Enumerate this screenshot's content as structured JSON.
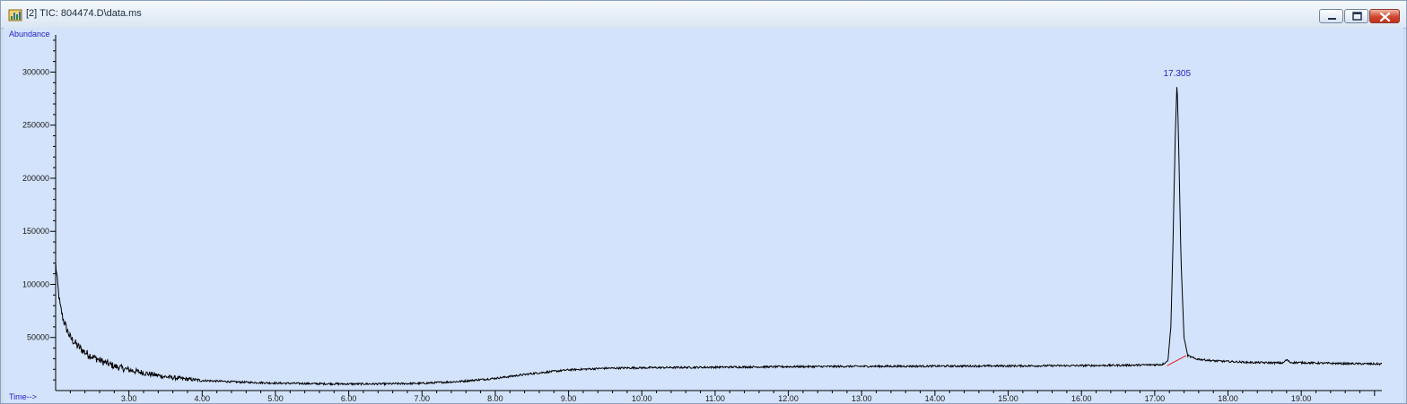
{
  "window": {
    "title": "[2] TIC: 804474.D\\data.ms",
    "icons": {
      "app": "chromatogram-app-icon",
      "minimize": "minimize-icon",
      "maximize": "maximize-icon",
      "close": "close-icon"
    }
  },
  "colors": {
    "plot_bg": "#d3e3fb",
    "trace": "#000000",
    "baseline": "#e01b1b",
    "axis_text": "#2424c8"
  },
  "chart_data": {
    "type": "line",
    "xlabel": "Time-->",
    "ylabel": "Abundance",
    "xlim": [
      2.0,
      20.1
    ],
    "ylim": [
      0,
      335000
    ],
    "x_ticks": [
      "3.00",
      "4.00",
      "5.00",
      "6.00",
      "7.00",
      "8.00",
      "9.00",
      "10.00",
      "11.00",
      "12.00",
      "13.00",
      "14.00",
      "15.00",
      "16.00",
      "17.00",
      "18.00",
      "19.00"
    ],
    "y_ticks": [
      "50000",
      "100000",
      "150000",
      "200000",
      "250000",
      "300000"
    ],
    "grid": false,
    "series": [
      {
        "points": [
          [
            2.0,
            120000
          ],
          [
            2.03,
            98000
          ],
          [
            2.06,
            80000
          ],
          [
            2.1,
            68000
          ],
          [
            2.15,
            58000
          ],
          [
            2.2,
            50000
          ],
          [
            2.3,
            42000
          ],
          [
            2.4,
            36000
          ],
          [
            2.5,
            32000
          ],
          [
            2.65,
            27000
          ],
          [
            2.8,
            23000
          ],
          [
            3.0,
            19500
          ],
          [
            3.25,
            16000
          ],
          [
            3.5,
            13000
          ],
          [
            3.75,
            11000
          ],
          [
            4.0,
            9500
          ],
          [
            4.5,
            8000
          ],
          [
            5.0,
            7000
          ],
          [
            5.5,
            6500
          ],
          [
            6.0,
            6200
          ],
          [
            6.5,
            6300
          ],
          [
            7.0,
            6800
          ],
          [
            7.5,
            8500
          ],
          [
            8.0,
            11500
          ],
          [
            8.5,
            16000
          ],
          [
            9.0,
            19500
          ],
          [
            9.5,
            21000
          ],
          [
            10.0,
            21500
          ],
          [
            11.0,
            22000
          ],
          [
            12.0,
            22500
          ],
          [
            13.0,
            22800
          ],
          [
            14.0,
            23000
          ],
          [
            15.0,
            23200
          ],
          [
            16.0,
            23500
          ],
          [
            16.8,
            24000
          ],
          [
            17.1,
            24500
          ],
          [
            17.18,
            28000
          ],
          [
            17.22,
            60000
          ],
          [
            17.25,
            140000
          ],
          [
            17.28,
            240000
          ],
          [
            17.305,
            292000
          ],
          [
            17.33,
            220000
          ],
          [
            17.36,
            120000
          ],
          [
            17.4,
            50000
          ],
          [
            17.45,
            33000
          ],
          [
            17.55,
            30000
          ],
          [
            17.8,
            28000
          ],
          [
            18.3,
            26500
          ],
          [
            18.75,
            26000
          ],
          [
            18.8,
            29000
          ],
          [
            18.85,
            26500
          ],
          [
            19.5,
            25500
          ],
          [
            20.1,
            25000
          ]
        ]
      }
    ],
    "baseline": [
      [
        17.17,
        23500
      ],
      [
        17.43,
        33000
      ]
    ],
    "annotations": [
      {
        "text": "17.305",
        "x": 17.305,
        "y": 292000
      }
    ]
  }
}
